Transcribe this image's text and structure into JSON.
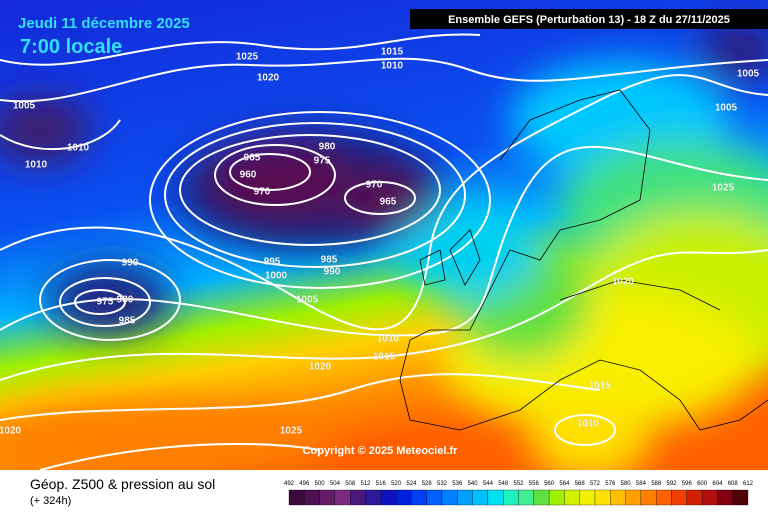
{
  "header": {
    "date": "Jeudi 11 décembre 2025",
    "time": "7:00 locale",
    "run": "Ensemble GEFS  (Perturbation 13)  -  18 Z du 27/11/2025"
  },
  "copyright": "Copyright © 2025 Meteociel.fr",
  "legend": {
    "title": "Géop. Z500 & pression au sol",
    "lead": "(+ 324h)",
    "scale_values": [
      492,
      496,
      500,
      504,
      508,
      512,
      516,
      520,
      524,
      528,
      532,
      536,
      540,
      544,
      548,
      552,
      556,
      560,
      564,
      568,
      572,
      576,
      580,
      584,
      588,
      592,
      596,
      600,
      604,
      608,
      612
    ],
    "scale_colors": [
      "#3a0a3a",
      "#4e1050",
      "#641a66",
      "#7a2a80",
      "#4a1a7a",
      "#2a1a9a",
      "#1010c0",
      "#0020e0",
      "#0040f0",
      "#0060ff",
      "#0080ff",
      "#00a0ff",
      "#00c0ff",
      "#00e0f0",
      "#20f0c0",
      "#40f090",
      "#60e040",
      "#a0f000",
      "#d0f000",
      "#f0f000",
      "#ffe000",
      "#ffc000",
      "#ffa000",
      "#ff8000",
      "#ff6000",
      "#f04000",
      "#d02000",
      "#b01010",
      "#800010",
      "#500008"
    ]
  },
  "isobar_labels": [
    1025,
    1020,
    1015,
    1010,
    1005,
    1010,
    1010,
    965,
    960,
    970,
    980,
    975,
    970,
    965,
    995,
    1000,
    985,
    990,
    990,
    975,
    980,
    985,
    1005,
    1010,
    1015,
    1020,
    1015,
    1010,
    1020,
    1025,
    1005,
    1005,
    1020,
    1025
  ]
}
